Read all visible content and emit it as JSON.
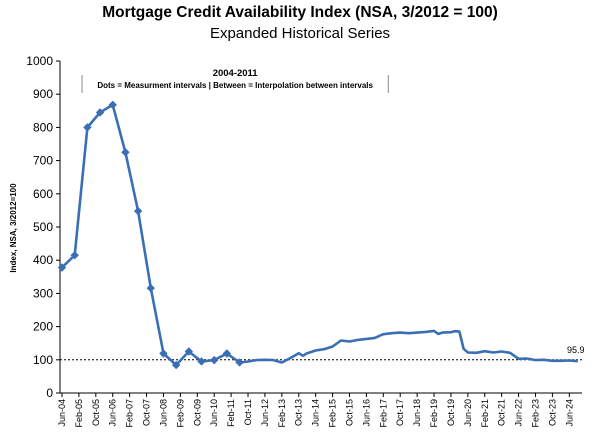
{
  "chart_data": {
    "type": "line",
    "title": "Mortgage Credit Availability Index (NSA, 3/2012 = 100)",
    "subtitle": "Expanded Historical Series",
    "xlabel": "",
    "ylabel": "Index, NSA, 3/2012=100",
    "ylim": [
      0,
      1000
    ],
    "yticks": [
      0,
      100,
      200,
      300,
      400,
      500,
      600,
      700,
      800,
      900,
      1000
    ],
    "xticks": [
      "Jun-04",
      "Feb-05",
      "Oct-05",
      "Jun-06",
      "Feb-07",
      "Oct-07",
      "Jun-08",
      "Feb-09",
      "Oct-09",
      "Jun-10",
      "Feb-11",
      "Oct-11",
      "Jun-12",
      "Feb-13",
      "Oct-13",
      "Jun-14",
      "Feb-15",
      "Oct-15",
      "Jun-16",
      "Feb-17",
      "Oct-17",
      "Jun-18",
      "Feb-19",
      "Oct-19",
      "Jun-20",
      "Feb-21",
      "Oct-21",
      "Jun-22",
      "Feb-23",
      "Oct-23",
      "Jun-24"
    ],
    "grid": false,
    "reference_line": {
      "y": 100,
      "style": "dotted"
    },
    "annotation": {
      "heading": "2004-2011",
      "text": "Dots = Measurment intervals  |  Between = Interpolation between intervals",
      "span": [
        "Jun-04",
        "Feb-17"
      ]
    },
    "end_label": "95.9",
    "series": [
      {
        "color": "#3a6fb5",
        "points": [
          [
            "Jun-04",
            378
          ],
          [
            "Dec-04",
            415
          ],
          [
            "Jun-05",
            800
          ],
          [
            "Dec-05",
            845
          ],
          [
            "Jun-06",
            868
          ],
          [
            "Dec-06",
            725
          ],
          [
            "Jun-07",
            548
          ],
          [
            "Dec-07",
            316
          ],
          [
            "Jun-08",
            119
          ],
          [
            "Dec-08",
            84
          ],
          [
            "Jun-09",
            125
          ],
          [
            "Dec-09",
            95
          ],
          [
            "Jun-10",
            99
          ],
          [
            "Dec-10",
            119
          ],
          [
            "Jun-11",
            92
          ],
          [
            "Oct-11",
            95
          ],
          [
            "Feb-12",
            99
          ],
          [
            "Jun-12",
            100
          ],
          [
            "Oct-12",
            99
          ],
          [
            "Feb-13",
            92
          ],
          [
            "Jun-13",
            105
          ],
          [
            "Oct-13",
            120
          ],
          [
            "Dec-13",
            112
          ],
          [
            "Feb-14",
            120
          ],
          [
            "Jun-14",
            128
          ],
          [
            "Oct-14",
            132
          ],
          [
            "Feb-15",
            140
          ],
          [
            "Jun-15",
            158
          ],
          [
            "Oct-15",
            155
          ],
          [
            "Feb-16",
            160
          ],
          [
            "Jun-16",
            163
          ],
          [
            "Oct-16",
            166
          ],
          [
            "Feb-17",
            177
          ],
          [
            "Jun-17",
            180
          ],
          [
            "Oct-17",
            182
          ],
          [
            "Feb-18",
            180
          ],
          [
            "Jun-18",
            182
          ],
          [
            "Oct-18",
            184
          ],
          [
            "Feb-19",
            187
          ],
          [
            "Apr-19",
            178
          ],
          [
            "Jun-19",
            182
          ],
          [
            "Oct-19",
            183
          ],
          [
            "Dec-19",
            186
          ],
          [
            "Feb-20",
            185
          ],
          [
            "Apr-20",
            133
          ],
          [
            "Jun-20",
            122
          ],
          [
            "Oct-20",
            121
          ],
          [
            "Feb-21",
            126
          ],
          [
            "Jun-21",
            122
          ],
          [
            "Oct-21",
            125
          ],
          [
            "Feb-22",
            121
          ],
          [
            "Jun-22",
            103
          ],
          [
            "Oct-22",
            104
          ],
          [
            "Feb-23",
            99
          ],
          [
            "Jun-23",
            100
          ],
          [
            "Oct-23",
            97
          ],
          [
            "Feb-24",
            97
          ],
          [
            "Jun-24",
            98
          ],
          [
            "Oct-24",
            95.9
          ]
        ],
        "markers": [
          "Jun-04",
          "Dec-04",
          "Jun-05",
          "Dec-05",
          "Jun-06",
          "Dec-06",
          "Jun-07",
          "Dec-07",
          "Jun-08",
          "Dec-08",
          "Jun-09",
          "Dec-09",
          "Jun-10",
          "Dec-10",
          "Jun-11"
        ]
      }
    ]
  }
}
